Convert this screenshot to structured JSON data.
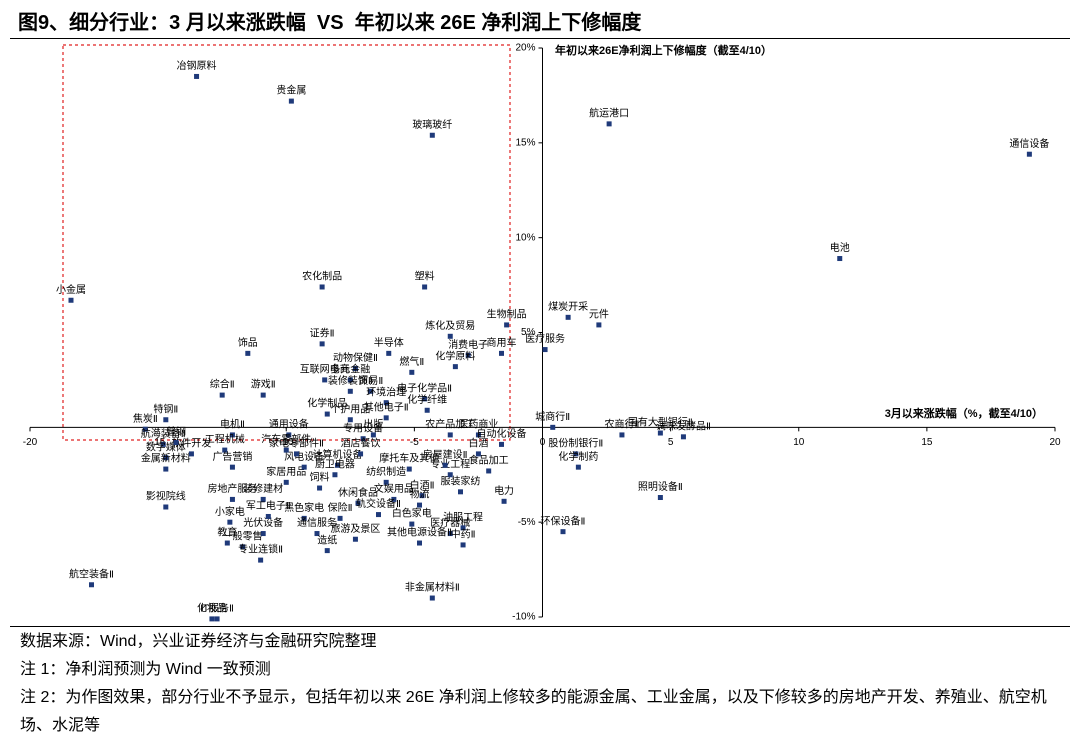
{
  "title": "图9、细分行业：3 月以来涨跌幅  VS  年初以来 26E 净利润上下修幅度",
  "notes": [
    "数据来源：Wind，兴业证券经济与金融研究院整理",
    "注 1：净利润预测为 Wind 一致预测",
    "注 2：为作图效果，部分行业不予显示，包括年初以来 26E 净利润上修较多的能源金属、工业金属，以及下修较多的房地产开发、养殖业、航空机场、水泥等"
  ],
  "chart_data": {
    "type": "scatter",
    "x_label": "3月以来涨跌幅（%，截至4/10）",
    "y_label": "年初以来26E净利润上下修幅度（截至4/10）",
    "color": "#1f3a7a",
    "xlim": [
      -20,
      20
    ],
    "xticks": [
      -20,
      -15,
      -10,
      -5,
      0,
      5,
      10,
      15,
      20
    ],
    "ylim": [
      -10,
      20
    ],
    "yticks": [
      {
        "value": -10,
        "label": "-10%"
      },
      {
        "value": -5,
        "label": "-5%"
      },
      {
        "value": 5,
        "label": "5%"
      },
      {
        "value": 10,
        "label": "10%"
      },
      {
        "value": 15,
        "label": "15%"
      },
      {
        "value": 20,
        "label": "20%"
      }
    ],
    "point_labels": [
      "冶钢原料",
      "贵金属",
      "玻璃玻纤",
      "航运港口",
      "通信设备",
      "电池",
      "小金属",
      "农化制品",
      "塑料",
      "煤炭开采",
      "元件",
      "生物制品",
      "医疗服务",
      "证券Ⅱ",
      "饰品",
      "炼化及贸易",
      "消费电子",
      "半导体",
      "化学原料",
      "商用车",
      "动物保健Ⅱ",
      "燃气Ⅱ",
      "互联网电商",
      "多元金融",
      "综合Ⅱ",
      "游戏Ⅱ",
      "装修装饰Ⅱ",
      "贸易Ⅱ",
      "电子化学品Ⅱ",
      "环境治理",
      "化学制品",
      "化学纤维",
      "个护用品",
      "其他电子Ⅱ",
      "特钢Ⅱ",
      "焦炭Ⅱ",
      "电机Ⅱ",
      "通用设备",
      "城商行Ⅱ",
      "农商行Ⅱ",
      "国有大型银行Ⅱ",
      "调味发酵品Ⅱ",
      "股份制银行Ⅱ",
      "化学制药",
      "照明设备Ⅱ",
      "环保设备Ⅱ",
      "电力",
      "食品加工",
      "白酒",
      "航海装备Ⅱ",
      "数字媒体",
      "金属新材料",
      "软件开发",
      "影视院线",
      "工程机械",
      "广告营销",
      "房地产服务",
      "家居用品",
      "装修建材",
      "小家电",
      "教育",
      "光伏设备",
      "一般零售",
      "专业连锁Ⅱ",
      "军工电子Ⅱ",
      "黑色家电",
      "通信服务",
      "造纸",
      "旅游及景区",
      "保险Ⅱ",
      "休闲食品",
      "饲料",
      "计算机设备",
      "风电设备",
      "厨卫电器",
      "纺织制造",
      "文娱用品",
      "轨交设备Ⅱ",
      "白色家电",
      "白酒Ⅱ",
      "物流",
      "医疗器械",
      "油服工程",
      "中药Ⅱ",
      "其他电源设备Ⅱ",
      "非金属材料Ⅱ",
      "航空装备Ⅱ",
      "IT服务Ⅱ",
      "化妆品",
      "服装家纺",
      "专业工程",
      "房屋建设Ⅱ",
      "医药商业",
      "自动化设备",
      "专用设备",
      "出版",
      "农产品加工",
      "汽车零部件",
      "家电零部件Ⅱ",
      "酒店餐饮",
      "摩托车及其他",
      "普钢"
    ],
    "x": [
      -13.5,
      -9.8,
      -4.3,
      2.6,
      19.0,
      11.6,
      -18.4,
      -8.6,
      -4.6,
      1.0,
      2.2,
      -1.4,
      0.1,
      -8.6,
      -11.5,
      -3.6,
      -2.9,
      -6.0,
      -3.4,
      -1.6,
      -7.3,
      -5.1,
      -8.5,
      -7.5,
      -12.5,
      -10.9,
      -7.5,
      -6.7,
      -4.6,
      -6.1,
      -8.4,
      -4.5,
      -7.5,
      -6.1,
      -14.7,
      -15.5,
      -12.1,
      -9.9,
      0.4,
      3.1,
      4.6,
      5.5,
      1.3,
      1.4,
      4.6,
      0.8,
      -1.5,
      -2.1,
      -2.5,
      -14.8,
      -14.7,
      -14.7,
      -13.7,
      -14.7,
      -12.4,
      -12.1,
      -12.1,
      -10.0,
      -10.9,
      -12.2,
      -12.3,
      -10.9,
      -11.7,
      -11.0,
      -10.7,
      -9.3,
      -8.8,
      -8.4,
      -7.3,
      -7.9,
      -7.2,
      -8.7,
      -8.0,
      -9.3,
      -8.1,
      -6.1,
      -5.8,
      -6.4,
      -5.1,
      -4.7,
      -4.8,
      -3.6,
      -3.1,
      -3.1,
      -4.8,
      -4.3,
      -17.6,
      -12.7,
      -12.9,
      -3.2,
      -3.6,
      -3.8,
      -2.5,
      -1.6,
      -7.0,
      -6.6,
      -3.6,
      -10.0,
      -9.6,
      -7.1,
      -5.2,
      -14.3
    ],
    "values": [
      18.5,
      17.2,
      15.4,
      16.0,
      14.4,
      8.9,
      6.7,
      7.4,
      7.4,
      5.8,
      5.4,
      5.4,
      4.1,
      4.4,
      3.9,
      4.8,
      3.8,
      3.9,
      3.2,
      3.9,
      3.1,
      2.9,
      2.5,
      2.5,
      1.7,
      1.7,
      1.9,
      1.9,
      1.5,
      1.3,
      0.7,
      0.9,
      0.4,
      0.5,
      0.4,
      -0.1,
      -0.4,
      -0.4,
      0.0,
      -0.4,
      -0.3,
      -0.5,
      -1.4,
      -2.1,
      -3.7,
      -5.5,
      -3.9,
      -2.3,
      -1.4,
      -0.9,
      -1.6,
      -2.2,
      -1.4,
      -4.2,
      -1.2,
      -2.1,
      -3.8,
      -2.9,
      -3.8,
      -5.0,
      -6.1,
      -5.6,
      -6.3,
      -7.0,
      -4.7,
      -4.8,
      -5.6,
      -6.5,
      -5.9,
      -4.8,
      -4.0,
      -3.2,
      -2.0,
      -2.1,
      -2.5,
      -2.9,
      -3.8,
      -4.6,
      -5.1,
      -3.6,
      -4.1,
      -5.6,
      -5.3,
      -6.2,
      -6.1,
      -9.0,
      -8.3,
      -10.1,
      -10.1,
      -3.4,
      -2.5,
      -2.0,
      -0.4,
      -0.9,
      -0.6,
      -0.4,
      -0.4,
      -1.2,
      -1.4,
      -1.4,
      -2.2,
      -0.8
    ]
  }
}
